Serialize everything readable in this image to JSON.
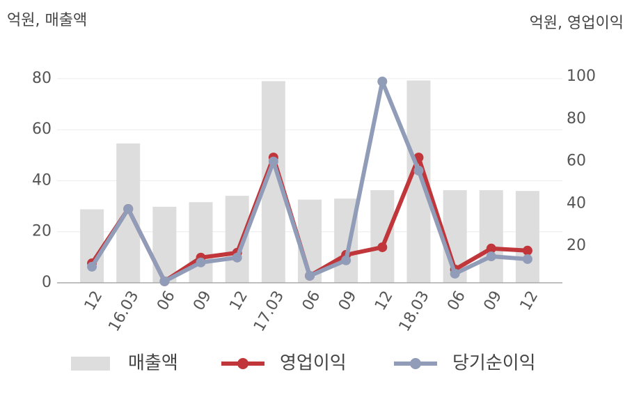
{
  "chart_data": {
    "type": "bar_line",
    "y_label": "억원, 매출액",
    "y2_label": "억원, 영업이익",
    "categories": [
      "12",
      "16.03",
      "06",
      "09",
      "12",
      "17.03",
      "06",
      "09",
      "12",
      "18.03",
      "06",
      "09",
      "12"
    ],
    "series": [
      {
        "name": "매출액",
        "type": "bar",
        "color": "#dddddd",
        "values": [
          28.8,
          54.6,
          29.8,
          31.6,
          34.1,
          79,
          32.6,
          33,
          36.3,
          79.3,
          36.3,
          36.3,
          36
        ]
      },
      {
        "name": "영업이익",
        "type": "line",
        "axis": "y2",
        "color": "#c0363a",
        "values": [
          11.8,
          37.5,
          3.3,
          14.5,
          16.8,
          61.8,
          5.9,
          15.8,
          19.4,
          61.8,
          8.9,
          18.8,
          17.8
        ]
      },
      {
        "name": "당기순이익",
        "type": "line",
        "axis": "y2",
        "color": "#919db8",
        "values": [
          10.2,
          37.5,
          3.3,
          12.2,
          14.5,
          59.9,
          5.9,
          13.2,
          97.7,
          55.6,
          6.9,
          15.1,
          13.8
        ]
      }
    ],
    "ylim": [
      0,
      80.8
    ],
    "yticks": [
      0,
      20,
      40,
      60,
      80
    ],
    "y2lim": [
      2.6,
      100
    ],
    "y2ticks": [
      20,
      40,
      60,
      80,
      100
    ],
    "grid": true
  }
}
